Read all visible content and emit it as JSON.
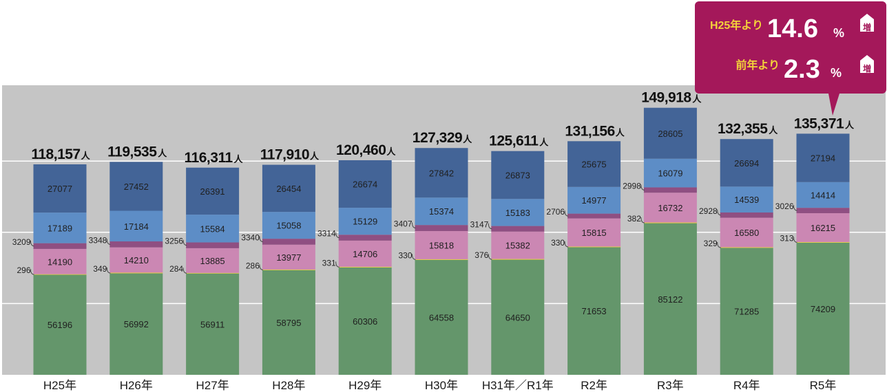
{
  "colors": {
    "plot_background": "#c5c5c5",
    "gridline": "#ffffff",
    "series": [
      "#64966b",
      "#f3d23a",
      "#cb87b3",
      "#8f4f82",
      "#5d8dc6",
      "#436497"
    ],
    "callout": "#a4185a"
  },
  "chart_data": {
    "type": "bar",
    "stacked": true,
    "categories": [
      "H25年",
      "H26年",
      "H27年",
      "H28年",
      "H29年",
      "H30年",
      "H31年／R1年",
      "R2年",
      "R3年",
      "R4年",
      "R5年"
    ],
    "series": [
      {
        "values": [
          56196,
          56992,
          56911,
          58795,
          60306,
          64558,
          64650,
          71653,
          85122,
          71285,
          74209
        ]
      },
      {
        "values": [
          296,
          349,
          284,
          286,
          331,
          330,
          376,
          330,
          382,
          329,
          313
        ]
      },
      {
        "values": [
          14190,
          14210,
          13885,
          13977,
          14706,
          15818,
          15382,
          15815,
          16732,
          16580,
          16215
        ]
      },
      {
        "values": [
          3209,
          3348,
          3256,
          3340,
          3314,
          3407,
          3147,
          2706,
          2998,
          2928,
          3026
        ]
      },
      {
        "values": [
          17189,
          17184,
          15584,
          15058,
          15129,
          15374,
          15183,
          14977,
          16079,
          14539,
          14414
        ]
      },
      {
        "values": [
          27077,
          27452,
          26391,
          26454,
          26674,
          27842,
          26873,
          25675,
          28605,
          26694,
          27194
        ]
      }
    ],
    "totals": [
      "118,157",
      "119,535",
      "116,311",
      "117,910",
      "120,460",
      "127,329",
      "125,611",
      "131,156",
      "149,918",
      "132,355",
      "135,371"
    ],
    "total_unit": "人",
    "grid": true,
    "legend": "none",
    "title": "",
    "xlabel": "",
    "ylabel": ""
  },
  "callout": {
    "line1_label": "H25年より",
    "line1_value": "14.6",
    "line1_pct": "%",
    "line1_badge": "増",
    "line2_label": "前年より",
    "line2_value": "2.3",
    "line2_pct": "%",
    "line2_badge": "増"
  }
}
